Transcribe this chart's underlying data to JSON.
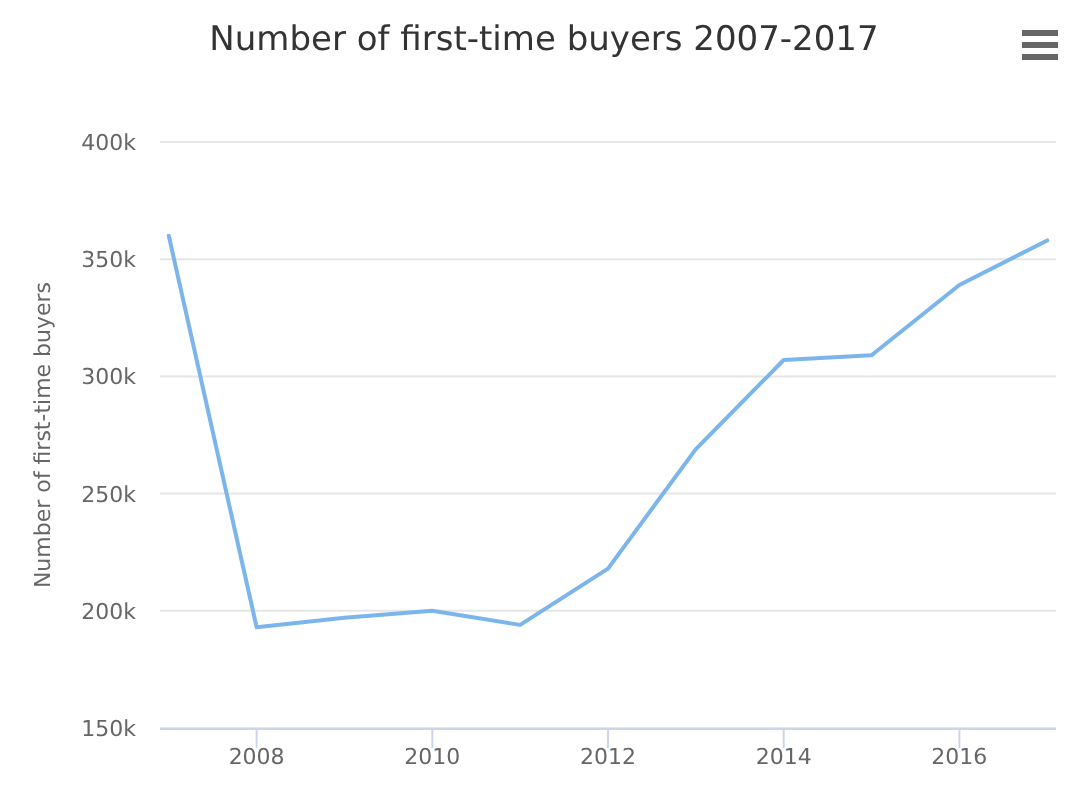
{
  "chart_data": {
    "type": "line",
    "title": "Number of first-time buyers 2007-2017",
    "ylabel": "Number of first-time buyers",
    "x": [
      2007,
      2008,
      2009,
      2010,
      2011,
      2012,
      2013,
      2014,
      2015,
      2016,
      2017
    ],
    "series": [
      {
        "color": "#7cb5ec",
        "values": [
          360000,
          193000,
          197000,
          200000,
          194000,
          218000,
          269000,
          307000,
          309000,
          339000,
          358000
        ]
      }
    ],
    "xlim": [
      2006.9,
      2017.1
    ],
    "xticks": [
      {
        "value": 2008,
        "label": "2008"
      },
      {
        "value": 2010,
        "label": "2010"
      },
      {
        "value": 2012,
        "label": "2012"
      },
      {
        "value": 2014,
        "label": "2014"
      },
      {
        "value": 2016,
        "label": "2016"
      }
    ],
    "ylim": [
      150000,
      400000
    ],
    "yticks": [
      {
        "value": 150000,
        "label": "150k"
      },
      {
        "value": 200000,
        "label": "200k"
      },
      {
        "value": 250000,
        "label": "250k"
      },
      {
        "value": 300000,
        "label": "300k"
      },
      {
        "value": 350000,
        "label": "350k"
      },
      {
        "value": 400000,
        "label": "400k"
      }
    ],
    "grid": "y",
    "marker": "none",
    "line_style": "solid"
  }
}
